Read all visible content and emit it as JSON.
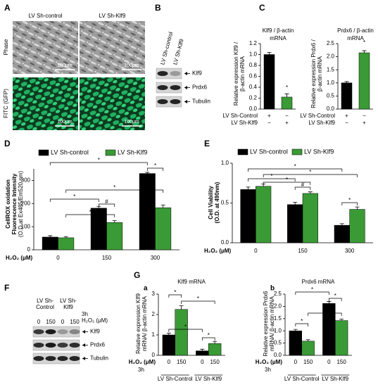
{
  "panel_letters": [
    "A",
    "B",
    "C",
    "D",
    "E",
    "F",
    "G"
  ],
  "panel_a": {
    "columns": [
      "LV Sh-control",
      "LV Sh-Klf9"
    ],
    "rows": [
      "Phase",
      "FITC (GFP)"
    ],
    "scale_bar": "100μm"
  },
  "panel_b": {
    "lanes": [
      "LV Sh-control",
      "LV Sh-Klf9"
    ],
    "bands": [
      "Klf9",
      "Prdx6",
      "Tubulin"
    ]
  },
  "panel_f": {
    "groups": [
      [
        "LV Sh-",
        "Control"
      ],
      [
        "LV Sh-",
        "Klf9"
      ]
    ],
    "time": "3h",
    "dose_label": "H₂O₂ (μM)",
    "lanes": [
      "0",
      "150",
      "0",
      "150"
    ],
    "bands": [
      "Klf9",
      "Prdx6",
      "Tubulin"
    ]
  },
  "chart_data": [
    {
      "type": "bar",
      "title": [
        "Klf9 / β-actin",
        "mRNA"
      ],
      "y_label": [
        "Relative expression Klf9 /",
        "β-actin mRNA"
      ],
      "values": [
        1.0,
        0.22
      ],
      "errors": [
        0.04,
        0.06
      ],
      "colors": [
        "#000000",
        "#3a9a35"
      ],
      "conditions": [
        {
          "label": "LV Sh-Control",
          "marks": [
            "+",
            "−"
          ]
        },
        {
          "label": "LV Sh-Klf9",
          "marks": [
            "−",
            "+"
          ]
        }
      ],
      "ylim": [
        0,
        1.2
      ],
      "yticks": [
        {
          "value": 0,
          "label": "0.0"
        },
        0.2,
        0.4,
        0.6,
        0.8,
        {
          "value": 1,
          "label": "1.0"
        },
        1.2
      ],
      "annotations": [
        "*"
      ]
    },
    {
      "type": "bar",
      "title": [
        "Prdx6 / β-actin",
        "mRNA"
      ],
      "y_label": [
        "Relative expression Prdx6 /",
        "β-actin mRNA"
      ],
      "values": [
        1.0,
        2.15
      ],
      "errors": [
        0.05,
        0.08
      ],
      "colors": [
        "#000000",
        "#3a9a35"
      ],
      "conditions": [
        {
          "label": "LV Sh-Control",
          "marks": [
            "+",
            "−"
          ]
        },
        {
          "label": "LV Sh-Klf9",
          "marks": [
            "−",
            "+"
          ]
        }
      ],
      "ylim": [
        0,
        2.5
      ],
      "yticks": [
        {
          "value": 0,
          "label": "0.0"
        },
        0.5,
        {
          "value": 1,
          "label": "1.0"
        },
        1.5,
        {
          "value": 2,
          "label": "2.0"
        },
        2.5
      ],
      "annotations": [
        "*"
      ]
    },
    {
      "type": "bar",
      "y_label": [
        "CellROX oxidation",
        "Fluorescence Intensity",
        "(O.D at Ex485/Em520 nm)"
      ],
      "x_label": "H₂O₂ (μM)",
      "categories": [
        "0",
        "150",
        "300"
      ],
      "series": [
        {
          "name": "LV Sh-control",
          "color": "#000000",
          "values": [
            55,
            180,
            330
          ],
          "errors": [
            6,
            8,
            5
          ]
        },
        {
          "name": "LV Sh-Klf9",
          "color": "#3a9a35",
          "values": [
            52,
            118,
            182
          ],
          "errors": [
            5,
            8,
            12
          ]
        }
      ],
      "ylim": [
        0,
        350
      ],
      "yticks": [
        0,
        100,
        200,
        300
      ],
      "annotations": [
        "*",
        "*",
        "*",
        "#",
        "*",
        "*"
      ]
    },
    {
      "type": "bar",
      "y_label": [
        "Cell Viability",
        "(O.D. at 490nm)"
      ],
      "x_label": "H₂O₂ (μM)",
      "categories": [
        "0",
        "150",
        "300"
      ],
      "series": [
        {
          "name": "LV Sh-control",
          "color": "#000000",
          "values": [
            0.67,
            0.48,
            0.22
          ],
          "errors": [
            0.03,
            0.03,
            0.02
          ]
        },
        {
          "name": "LV Sh-Klf9",
          "color": "#3a9a35",
          "values": [
            0.71,
            0.62,
            0.42
          ],
          "errors": [
            0.03,
            0.02,
            0.03
          ]
        }
      ],
      "ylim": [
        0,
        1
      ],
      "yticks": [
        {
          "value": 0,
          "label": "0.0"
        },
        0.5,
        {
          "value": 1,
          "label": "1.0"
        }
      ],
      "annotations": [
        "*",
        "*",
        "*",
        "*",
        "#",
        "*"
      ]
    },
    {
      "type": "bar",
      "sublabel": "a",
      "title": [
        "Klf9 mRNA"
      ],
      "y_label": [
        "Relative expression Klf9",
        "mRNA/ β-actin mRNA"
      ],
      "x_label": "H₂O₂ (μM)",
      "time": "3h",
      "categories": [
        "LV Sh-Control",
        "LV Sh-Klf9"
      ],
      "series": [
        {
          "name": "0",
          "color": "#000000",
          "values": [
            1.0,
            0.22
          ],
          "errors": [
            0.08,
            0.08
          ]
        },
        {
          "name": "150",
          "color": "#3a9a35",
          "values": [
            2.25,
            0.58
          ],
          "errors": [
            0.18,
            0.1
          ]
        }
      ],
      "ylim": [
        0,
        3
      ],
      "yticks": [
        0,
        1,
        2,
        3
      ],
      "annotations": [
        "*",
        "*",
        "*",
        "*"
      ]
    },
    {
      "type": "bar",
      "sublabel": "b",
      "title": [
        "Prdx6 mRNA"
      ],
      "y_label": [
        "Relative expression Prdx6",
        "mRNA/ β-actin mRNA"
      ],
      "x_label": "H₂O₂ (μM)",
      "time": "3h",
      "categories": [
        "LV Sh-Control",
        "LV Sh-Klf9"
      ],
      "series": [
        {
          "name": "0",
          "color": "#000000",
          "values": [
            1.0,
            2.12
          ],
          "errors": [
            0.06,
            0.08
          ]
        },
        {
          "name": "150",
          "color": "#3a9a35",
          "values": [
            0.58,
            1.42
          ],
          "errors": [
            0.06,
            0.06
          ]
        }
      ],
      "ylim": [
        0,
        2.5
      ],
      "yticks": [
        {
          "value": 0,
          "label": "0.0"
        },
        0.5,
        {
          "value": 1,
          "label": "1.0"
        },
        1.5,
        {
          "value": 2,
          "label": "2.0"
        },
        2.5
      ],
      "annotations": [
        "*",
        "*",
        "*",
        "*"
      ]
    }
  ]
}
